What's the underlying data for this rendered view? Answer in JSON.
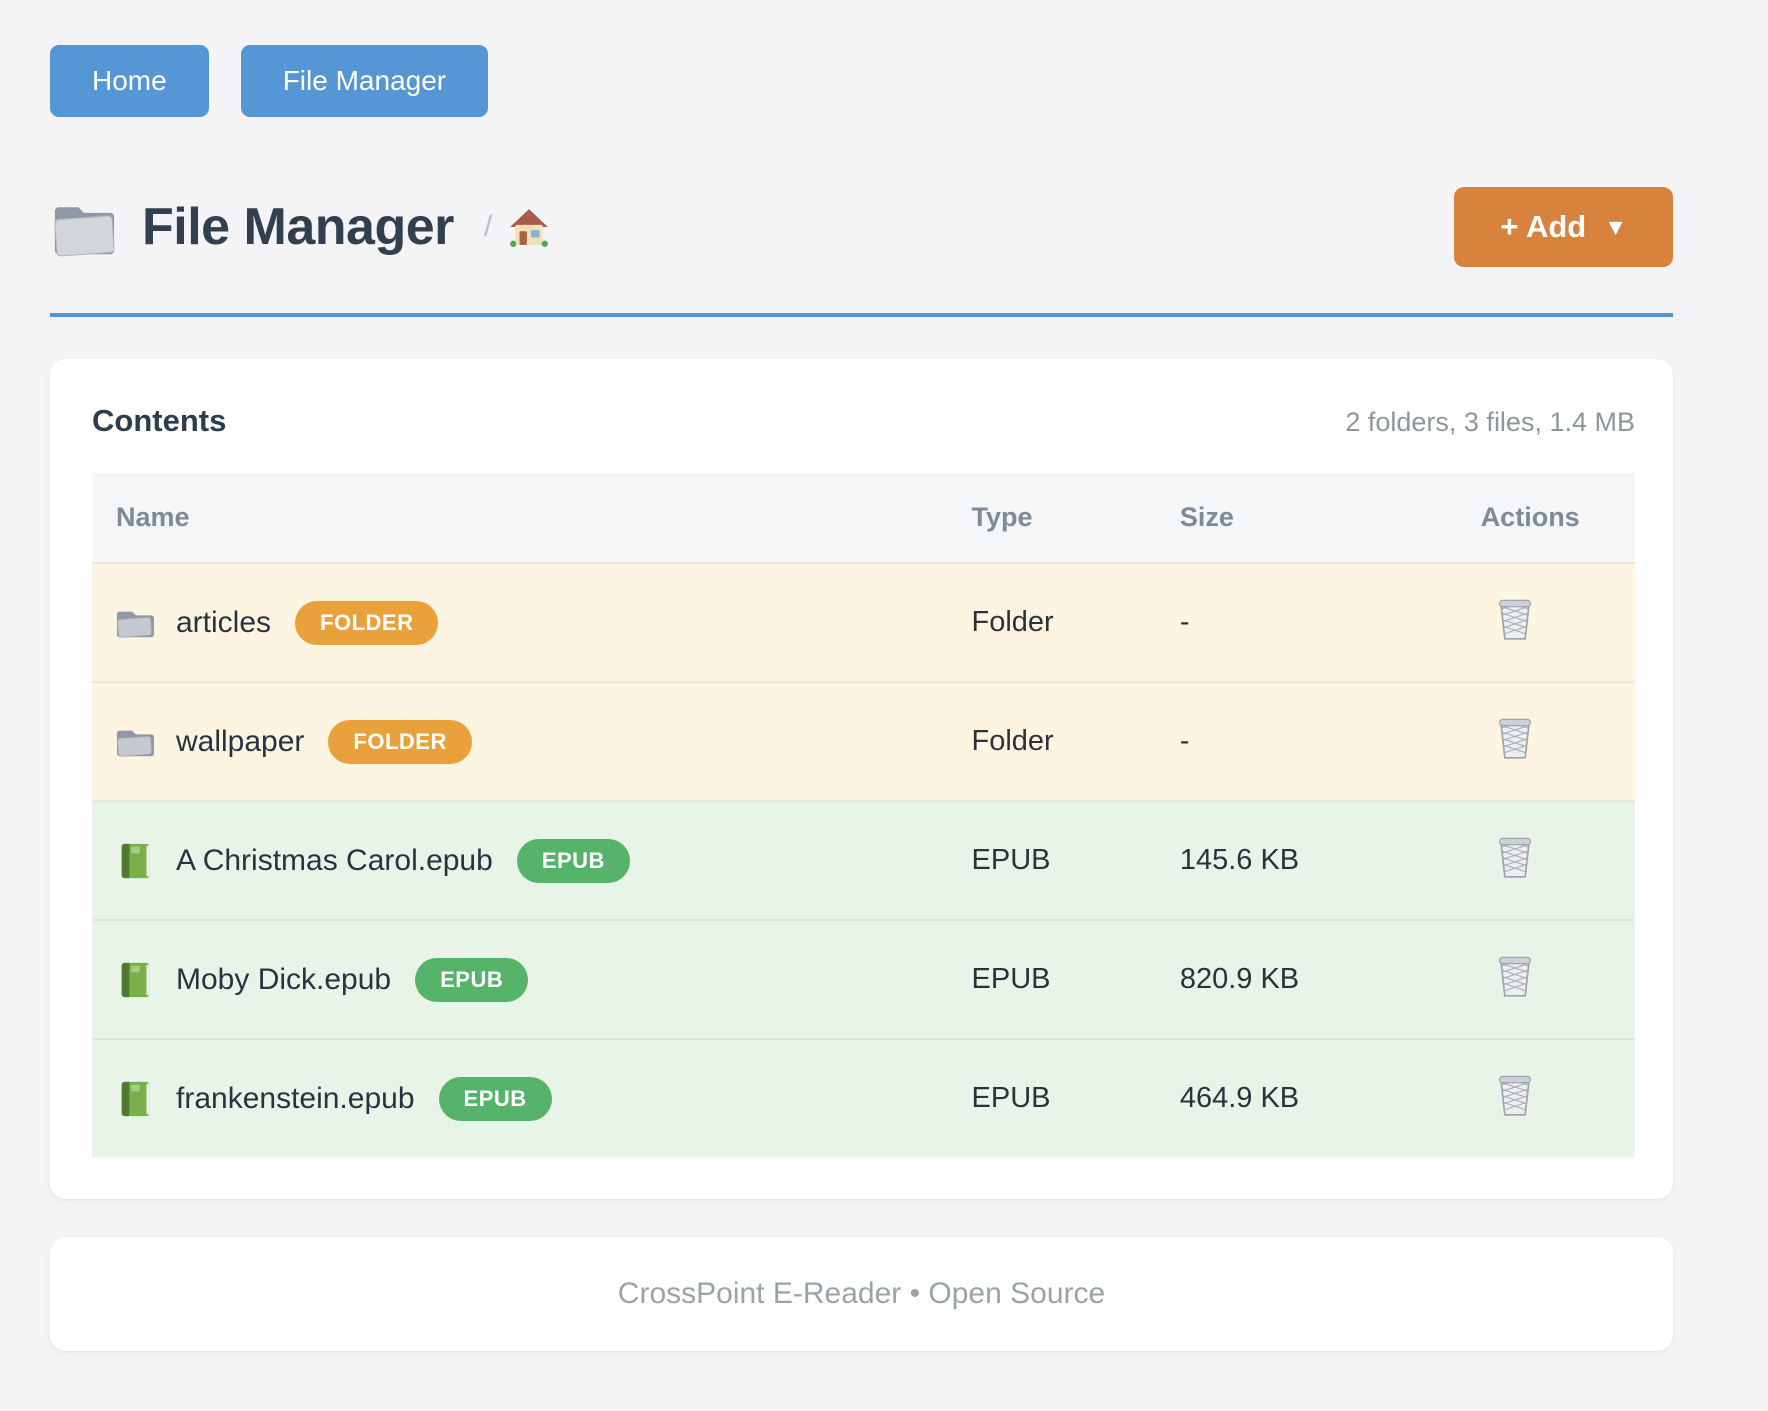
{
  "nav": {
    "buttons": [
      {
        "label": "Home"
      },
      {
        "label": "File Manager"
      }
    ]
  },
  "header": {
    "title": "File Manager",
    "breadcrumb_separator": "/",
    "add_button": {
      "label": "+ Add",
      "caret": "▼"
    }
  },
  "contents": {
    "heading": "Contents",
    "summary": "2 folders, 3 files, 1.4 MB",
    "table": {
      "columns": [
        "Name",
        "Type",
        "Size",
        "Actions"
      ],
      "rows": [
        {
          "name": "articles",
          "kind": "folder",
          "badge": "FOLDER",
          "type": "Folder",
          "size": "-"
        },
        {
          "name": "wallpaper",
          "kind": "folder",
          "badge": "FOLDER",
          "type": "Folder",
          "size": "-"
        },
        {
          "name": "A Christmas Carol.epub",
          "kind": "epub",
          "badge": "EPUB",
          "type": "EPUB",
          "size": "145.6 KB"
        },
        {
          "name": "Moby Dick.epub",
          "kind": "epub",
          "badge": "EPUB",
          "type": "EPUB",
          "size": "820.9 KB"
        },
        {
          "name": "frankenstein.epub",
          "kind": "epub",
          "badge": "EPUB",
          "type": "EPUB",
          "size": "464.9 KB"
        }
      ]
    }
  },
  "footer": {
    "text": "CrossPoint E-Reader • Open Source"
  },
  "colors": {
    "nav_button": "#5596d4",
    "add_button": "#d7833d",
    "title_rule": "#4e94d8",
    "folder_badge": "#e9a23b",
    "epub_badge": "#55b469",
    "folder_row_bg": "#fdf5e2",
    "epub_row_bg": "#e9f4e9",
    "header_row_bg": "#f4f6f8"
  }
}
